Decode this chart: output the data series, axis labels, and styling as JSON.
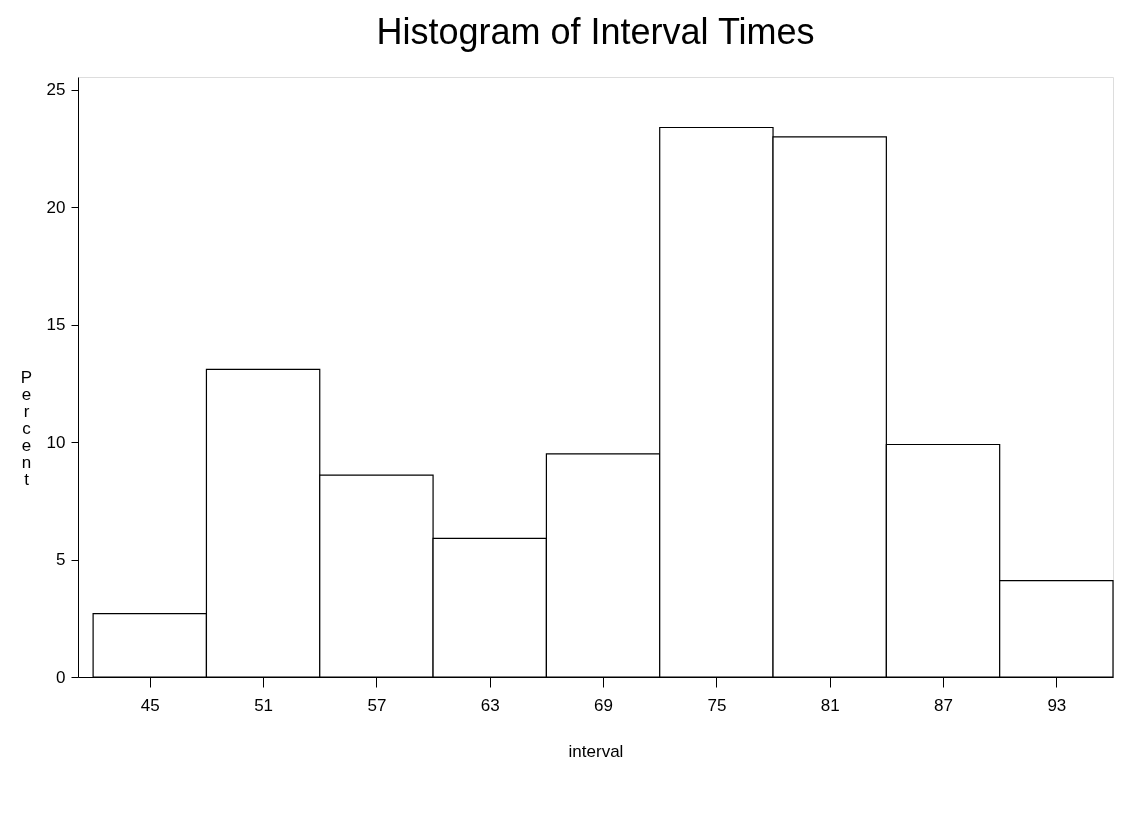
{
  "chart_data": {
    "type": "histogram",
    "title": "Histogram of Interval Times",
    "xlabel": "interval",
    "ylabel": "Percent",
    "bins": [
      42,
      48,
      54,
      60,
      66,
      72,
      78,
      84,
      90,
      96
    ],
    "values": [
      2.7,
      13.1,
      8.6,
      5.9,
      9.5,
      23.4,
      23.0,
      9.9,
      4.1
    ],
    "color": "#ffffff",
    "xlim": [
      41.2,
      96
    ],
    "xticks": [
      45,
      51,
      57,
      63,
      69,
      75,
      81,
      87,
      93
    ],
    "ylim": [
      0,
      25.55
    ],
    "yticks": [
      0,
      5,
      10,
      15,
      20,
      25
    ],
    "grid": false
  }
}
